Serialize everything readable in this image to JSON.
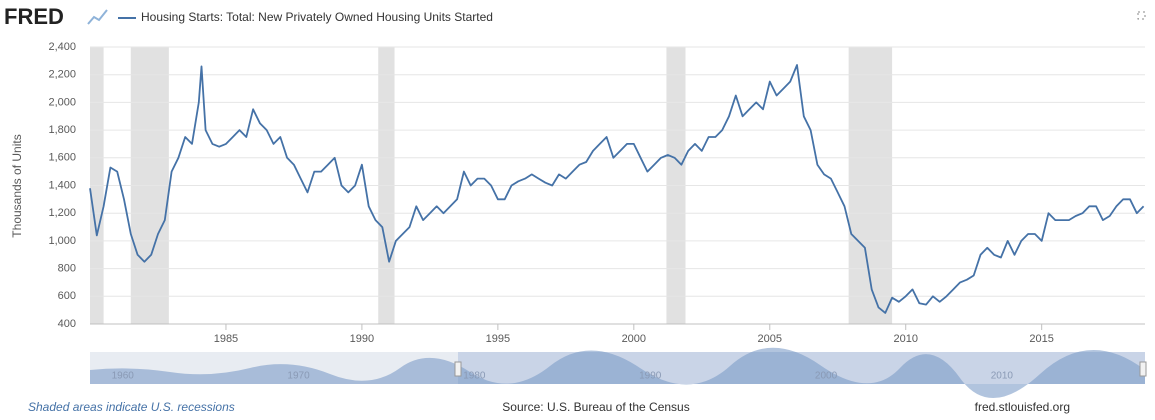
{
  "header": {
    "logo": "FRED",
    "series_title": "Housing Starts: Total: New Privately Owned Housing Units Started"
  },
  "chart_data": {
    "type": "line",
    "y_label": "Thousands of Units",
    "xlim": [
      1980,
      2018.8
    ],
    "xticks": [
      1985,
      1990,
      1995,
      2000,
      2005,
      2010,
      2015
    ],
    "ylim": [
      400,
      2400
    ],
    "yticks": [
      {
        "value": 400,
        "label": "400"
      },
      {
        "value": 600,
        "label": "600"
      },
      {
        "value": 800,
        "label": "800"
      },
      {
        "value": 1000,
        "label": "1,000"
      },
      {
        "value": 1200,
        "label": "1,200"
      },
      {
        "value": 1400,
        "label": "1,400"
      },
      {
        "value": 1600,
        "label": "1,600"
      },
      {
        "value": 1800,
        "label": "1,800"
      },
      {
        "value": 2000,
        "label": "2,000"
      },
      {
        "value": 2200,
        "label": "2,200"
      },
      {
        "value": 2400,
        "label": "2,400"
      }
    ],
    "grid": true,
    "recessions": [
      [
        1980.0,
        1980.5
      ],
      [
        1981.5,
        1982.9
      ],
      [
        1990.6,
        1991.2
      ],
      [
        2001.2,
        2001.9
      ],
      [
        2007.9,
        2009.5
      ]
    ],
    "recession_color": "#e1e1e1",
    "x": [
      1980.0,
      1980.25,
      1980.5,
      1980.75,
      1981.0,
      1981.25,
      1981.5,
      1981.75,
      1982.0,
      1982.25,
      1982.5,
      1982.75,
      1983.0,
      1983.25,
      1983.5,
      1983.75,
      1984.0,
      1984.1,
      1984.25,
      1984.5,
      1984.75,
      1985.0,
      1985.25,
      1985.5,
      1985.75,
      1986.0,
      1986.25,
      1986.5,
      1986.75,
      1987.0,
      1987.25,
      1987.5,
      1987.75,
      1988.0,
      1988.25,
      1988.5,
      1988.75,
      1989.0,
      1989.25,
      1989.5,
      1989.75,
      1990.0,
      1990.25,
      1990.5,
      1990.75,
      1991.0,
      1991.25,
      1991.5,
      1991.75,
      1992.0,
      1992.25,
      1992.5,
      1992.75,
      1993.0,
      1993.25,
      1993.5,
      1993.75,
      1994.0,
      1994.25,
      1994.5,
      1994.75,
      1995.0,
      1995.25,
      1995.5,
      1995.75,
      1996.0,
      1996.25,
      1996.5,
      1996.75,
      1997.0,
      1997.25,
      1997.5,
      1997.75,
      1998.0,
      1998.25,
      1998.5,
      1998.75,
      1999.0,
      1999.25,
      1999.5,
      1999.75,
      2000.0,
      2000.25,
      2000.5,
      2000.75,
      2001.0,
      2001.25,
      2001.5,
      2001.75,
      2002.0,
      2002.25,
      2002.5,
      2002.75,
      2003.0,
      2003.25,
      2003.5,
      2003.75,
      2004.0,
      2004.25,
      2004.5,
      2004.75,
      2005.0,
      2005.25,
      2005.5,
      2005.75,
      2006.0,
      2006.25,
      2006.5,
      2006.75,
      2007.0,
      2007.25,
      2007.5,
      2007.75,
      2008.0,
      2008.25,
      2008.5,
      2008.75,
      2009.0,
      2009.25,
      2009.5,
      2009.75,
      2010.0,
      2010.25,
      2010.5,
      2010.75,
      2011.0,
      2011.25,
      2011.5,
      2011.75,
      2012.0,
      2012.25,
      2012.5,
      2012.75,
      2013.0,
      2013.25,
      2013.5,
      2013.75,
      2014.0,
      2014.25,
      2014.5,
      2014.75,
      2015.0,
      2015.25,
      2015.5,
      2015.75,
      2016.0,
      2016.25,
      2016.5,
      2016.75,
      2017.0,
      2017.25,
      2017.5,
      2017.75,
      2018.0,
      2018.25,
      2018.5,
      2018.75
    ],
    "series": [
      {
        "name": "Housing Starts: Total: New Privately Owned Housing Units Started",
        "color": "#4572a7",
        "values": [
          1380,
          1040,
          1250,
          1530,
          1500,
          1300,
          1050,
          900,
          850,
          900,
          1050,
          1150,
          1500,
          1600,
          1750,
          1700,
          2000,
          2260,
          1800,
          1700,
          1680,
          1700,
          1750,
          1800,
          1750,
          1950,
          1850,
          1800,
          1700,
          1750,
          1600,
          1550,
          1450,
          1350,
          1500,
          1500,
          1550,
          1600,
          1400,
          1350,
          1400,
          1550,
          1250,
          1150,
          1100,
          850,
          1000,
          1050,
          1100,
          1250,
          1150,
          1200,
          1250,
          1200,
          1250,
          1300,
          1500,
          1400,
          1450,
          1450,
          1400,
          1300,
          1300,
          1400,
          1430,
          1450,
          1480,
          1450,
          1420,
          1400,
          1480,
          1450,
          1500,
          1550,
          1570,
          1650,
          1700,
          1750,
          1600,
          1650,
          1700,
          1700,
          1600,
          1500,
          1550,
          1600,
          1620,
          1600,
          1550,
          1650,
          1700,
          1650,
          1750,
          1750,
          1800,
          1900,
          2050,
          1900,
          1950,
          2000,
          1950,
          2150,
          2050,
          2100,
          2150,
          2270,
          1900,
          1800,
          1550,
          1480,
          1450,
          1350,
          1250,
          1050,
          1000,
          950,
          650,
          520,
          480,
          590,
          560,
          600,
          650,
          550,
          540,
          600,
          560,
          600,
          650,
          700,
          720,
          750,
          900,
          950,
          900,
          880,
          1000,
          900,
          1000,
          1050,
          1050,
          1000,
          1200,
          1150,
          1150,
          1150,
          1180,
          1200,
          1250,
          1250,
          1150,
          1180,
          1250,
          1300,
          1300,
          1200,
          1250
        ]
      }
    ],
    "navigator": {
      "xlim": [
        1959,
        2019
      ],
      "xticks": [
        1960,
        1970,
        1980,
        1990,
        2000,
        2010
      ]
    }
  },
  "footer": {
    "note": "Shaded areas indicate U.S. recessions",
    "source": "Source: U.S. Bureau of the Census",
    "site": "fred.stlouisfed.org"
  }
}
